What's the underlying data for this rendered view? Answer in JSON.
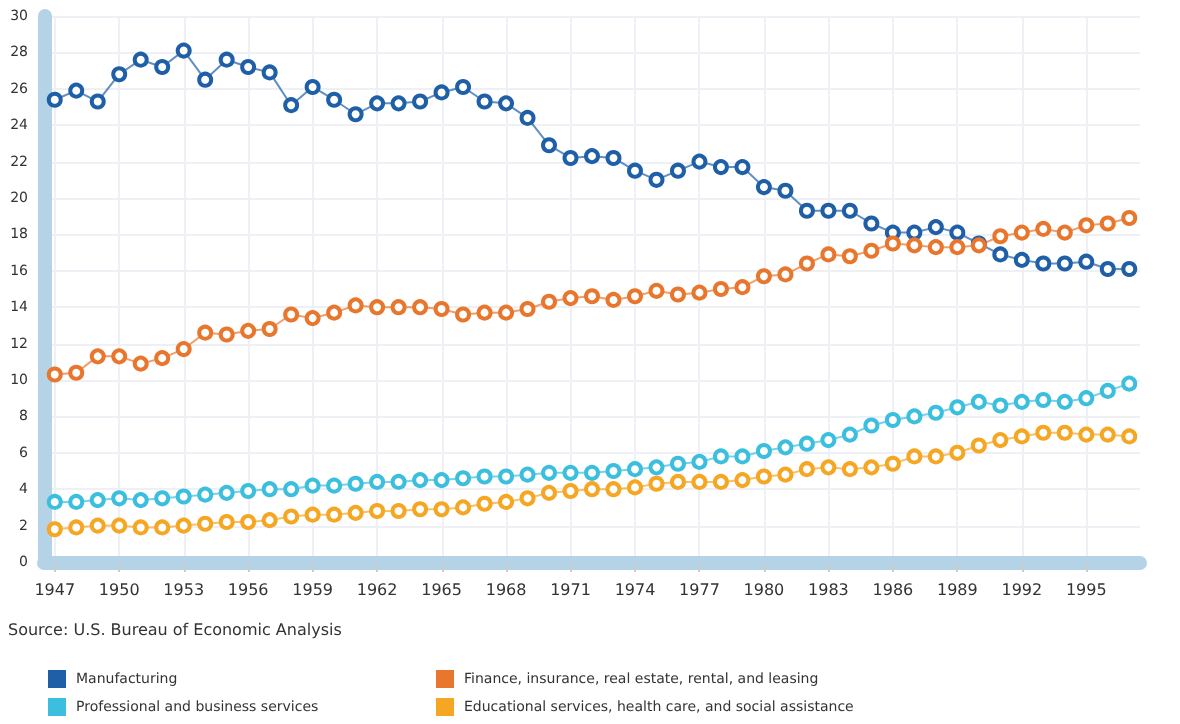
{
  "chart_data": {
    "type": "line",
    "x": [
      1947,
      1948,
      1949,
      1950,
      1951,
      1952,
      1953,
      1954,
      1955,
      1956,
      1957,
      1958,
      1959,
      1960,
      1961,
      1962,
      1963,
      1964,
      1965,
      1966,
      1967,
      1968,
      1969,
      1970,
      1971,
      1972,
      1973,
      1974,
      1975,
      1976,
      1977,
      1978,
      1979,
      1980,
      1981,
      1982,
      1983,
      1984,
      1985,
      1986,
      1987,
      1988,
      1989,
      1990,
      1991,
      1992,
      1993,
      1994,
      1995,
      1996,
      1997
    ],
    "series": [
      {
        "name": "Manufacturing",
        "color": "#1f5fa8",
        "values": [
          25.4,
          25.9,
          25.3,
          26.8,
          27.6,
          27.2,
          28.1,
          26.5,
          27.6,
          27.2,
          26.9,
          25.1,
          26.1,
          25.4,
          24.6,
          25.2,
          25.2,
          25.3,
          25.8,
          26.1,
          25.3,
          25.2,
          24.4,
          22.9,
          22.2,
          22.3,
          22.2,
          21.5,
          21.0,
          21.5,
          22.0,
          21.7,
          21.7,
          20.6,
          20.4,
          19.3,
          19.3,
          19.3,
          18.6,
          18.1,
          18.1,
          18.4,
          18.1,
          17.5,
          16.9,
          16.6,
          16.4,
          16.4,
          16.5,
          16.1,
          16.1
        ]
      },
      {
        "name": "Finance, insurance, real estate, rental, and leasing",
        "color": "#e8762d",
        "values": [
          10.3,
          10.4,
          11.3,
          11.3,
          10.9,
          11.2,
          11.7,
          12.6,
          12.5,
          12.7,
          12.8,
          13.6,
          13.4,
          13.7,
          14.1,
          14.0,
          14.0,
          14.0,
          13.9,
          13.6,
          13.7,
          13.7,
          13.9,
          14.3,
          14.5,
          14.6,
          14.4,
          14.6,
          14.9,
          14.7,
          14.8,
          15.0,
          15.1,
          15.7,
          15.8,
          16.4,
          16.9,
          16.8,
          17.1,
          17.5,
          17.4,
          17.3,
          17.3,
          17.4,
          17.9,
          18.1,
          18.3,
          18.1,
          18.5,
          18.6,
          18.9
        ]
      },
      {
        "name": "Professional and business services",
        "color": "#3cbfdf",
        "values": [
          3.3,
          3.3,
          3.4,
          3.5,
          3.4,
          3.5,
          3.6,
          3.7,
          3.8,
          3.9,
          4.0,
          4.0,
          4.2,
          4.2,
          4.3,
          4.4,
          4.4,
          4.5,
          4.5,
          4.6,
          4.7,
          4.7,
          4.8,
          4.9,
          4.9,
          4.9,
          5.0,
          5.1,
          5.2,
          5.4,
          5.5,
          5.8,
          5.8,
          6.1,
          6.3,
          6.5,
          6.7,
          7.0,
          7.5,
          7.8,
          8.0,
          8.2,
          8.5,
          8.8,
          8.6,
          8.8,
          8.9,
          8.8,
          9.0,
          9.4,
          9.8
        ]
      },
      {
        "name": "Educational services, health care, and social assistance",
        "color": "#f5a623",
        "values": [
          1.8,
          1.9,
          2.0,
          2.0,
          1.9,
          1.9,
          2.0,
          2.1,
          2.2,
          2.2,
          2.3,
          2.5,
          2.6,
          2.6,
          2.7,
          2.8,
          2.8,
          2.9,
          2.9,
          3.0,
          3.2,
          3.3,
          3.5,
          3.8,
          3.9,
          4.0,
          4.0,
          4.1,
          4.3,
          4.4,
          4.4,
          4.4,
          4.5,
          4.7,
          4.8,
          5.1,
          5.2,
          5.1,
          5.2,
          5.4,
          5.8,
          5.8,
          6.0,
          6.4,
          6.7,
          6.9,
          7.1,
          7.1,
          7.0,
          7.0,
          6.9
        ]
      }
    ],
    "xlim": [
      1946.5,
      1997.5
    ],
    "xticks": [
      1947,
      1950,
      1953,
      1956,
      1959,
      1962,
      1965,
      1968,
      1971,
      1974,
      1977,
      1980,
      1983,
      1986,
      1989,
      1992,
      1995
    ],
    "ylim": [
      0,
      30
    ],
    "yticks": [
      0,
      2,
      4,
      6,
      8,
      10,
      12,
      14,
      16,
      18,
      20,
      22,
      24,
      26,
      28,
      30
    ],
    "annotations": [
      "Source: U.S. Bureau of Economic Analysis"
    ],
    "grid": true,
    "legend": "bottom",
    "marker": "circle",
    "line_style": "solid"
  }
}
